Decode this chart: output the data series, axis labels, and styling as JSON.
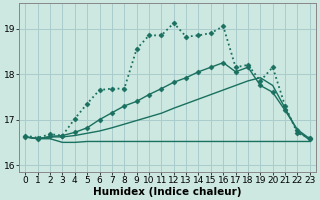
{
  "title": "",
  "xlabel": "Humidex (Indice chaleur)",
  "background_color": "#cce8e0",
  "grid_color": "#aacccc",
  "line_color": "#1a7060",
  "xlim": [
    -0.5,
    23.5
  ],
  "ylim": [
    15.85,
    19.55
  ],
  "yticks": [
    16,
    17,
    18,
    19
  ],
  "xticks": [
    0,
    1,
    2,
    3,
    4,
    5,
    6,
    7,
    8,
    9,
    10,
    11,
    12,
    13,
    14,
    15,
    16,
    17,
    18,
    19,
    20,
    21,
    22,
    23
  ],
  "lines": [
    {
      "x": [
        0,
        1,
        2,
        3,
        4,
        5,
        6,
        7,
        8,
        9,
        10,
        11,
        12,
        13,
        14,
        15,
        16,
        17,
        18,
        19,
        20,
        21,
        22,
        23
      ],
      "y": [
        16.62,
        16.58,
        16.58,
        16.5,
        16.5,
        16.52,
        16.52,
        16.52,
        16.52,
        16.52,
        16.52,
        16.52,
        16.52,
        16.52,
        16.52,
        16.52,
        16.52,
        16.52,
        16.52,
        16.52,
        16.52,
        16.52,
        16.52,
        16.52
      ],
      "style": "-",
      "marker": null,
      "linewidth": 1.0
    },
    {
      "x": [
        0,
        1,
        2,
        3,
        4,
        5,
        6,
        7,
        8,
        9,
        10,
        11,
        12,
        13,
        14,
        15,
        16,
        17,
        18,
        19,
        20,
        21,
        22,
        23
      ],
      "y": [
        16.62,
        16.58,
        16.62,
        16.62,
        16.65,
        16.7,
        16.75,
        16.82,
        16.9,
        16.98,
        17.06,
        17.14,
        17.25,
        17.35,
        17.45,
        17.55,
        17.65,
        17.75,
        17.85,
        17.92,
        17.75,
        17.25,
        16.75,
        16.55
      ],
      "style": "-",
      "marker": null,
      "linewidth": 1.0
    },
    {
      "x": [
        0,
        1,
        2,
        3,
        4,
        5,
        6,
        7,
        8,
        9,
        10,
        11,
        12,
        13,
        14,
        15,
        16,
        17,
        18,
        19,
        20,
        21,
        22,
        23
      ],
      "y": [
        16.62,
        16.58,
        16.63,
        16.65,
        16.72,
        16.82,
        17.0,
        17.15,
        17.3,
        17.4,
        17.55,
        17.68,
        17.82,
        17.92,
        18.05,
        18.15,
        18.25,
        18.05,
        18.15,
        17.75,
        17.6,
        17.2,
        16.78,
        16.58
      ],
      "style": "-",
      "marker": "D",
      "markersize": 2.5,
      "linewidth": 1.0
    },
    {
      "x": [
        0,
        1,
        2,
        3,
        4,
        5,
        6,
        7,
        8,
        9,
        10,
        11,
        12,
        13,
        14,
        15,
        16,
        17,
        18,
        19,
        20,
        21,
        22,
        23
      ],
      "y": [
        16.65,
        16.6,
        16.68,
        16.65,
        17.02,
        17.35,
        17.65,
        17.68,
        17.68,
        18.55,
        18.85,
        18.85,
        19.12,
        18.82,
        18.85,
        18.9,
        19.05,
        18.15,
        18.2,
        17.85,
        18.15,
        17.3,
        16.7,
        16.6
      ],
      "style": ":",
      "marker": "D",
      "markersize": 2.5,
      "linewidth": 1.3
    }
  ],
  "tick_fontsize": 6.5,
  "label_fontsize": 7.5
}
